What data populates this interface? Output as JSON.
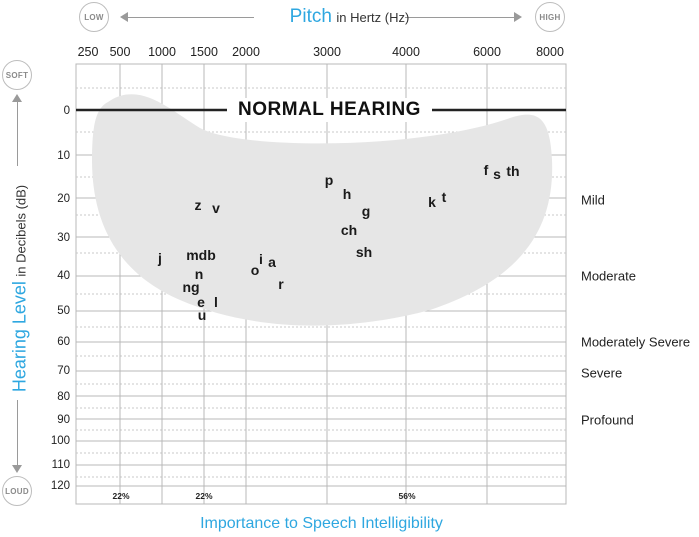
{
  "pitch_axis": {
    "title": "Pitch",
    "subtitle": "in Hertz (Hz)",
    "low_label": "LOW",
    "high_label": "HIGH",
    "frequencies": [
      "250",
      "500",
      "1000",
      "1500",
      "2000",
      "3000",
      "4000",
      "6000",
      "8000"
    ]
  },
  "level_axis": {
    "title": "Hearing Level",
    "subtitle": "in Decibels (dB)",
    "soft_label": "SOFT",
    "loud_label": "LOUD",
    "db_ticks": [
      "0",
      "10",
      "20",
      "30",
      "40",
      "50",
      "60",
      "70",
      "80",
      "90",
      "100",
      "110",
      "120"
    ]
  },
  "banner": "NORMAL HEARING",
  "severity": [
    "Mild",
    "Moderate",
    "Moderately Severe",
    "Severe",
    "Profound"
  ],
  "phonemes": [
    "z",
    "v",
    "j",
    "mdb",
    "n",
    "ng",
    "e",
    "l",
    "u",
    "o",
    "i",
    "a",
    "r",
    "p",
    "h",
    "g",
    "ch",
    "sh",
    "k",
    "t",
    "f",
    "s",
    "th"
  ],
  "intelligibility": {
    "title": "Importance to Speech Intelligibility",
    "percentages": [
      "22%",
      "22%",
      "56%"
    ]
  },
  "colors": {
    "accent": "#2ea7e0",
    "speech_banana": "#e6e6e6",
    "grid": "#b8b8b8"
  }
}
